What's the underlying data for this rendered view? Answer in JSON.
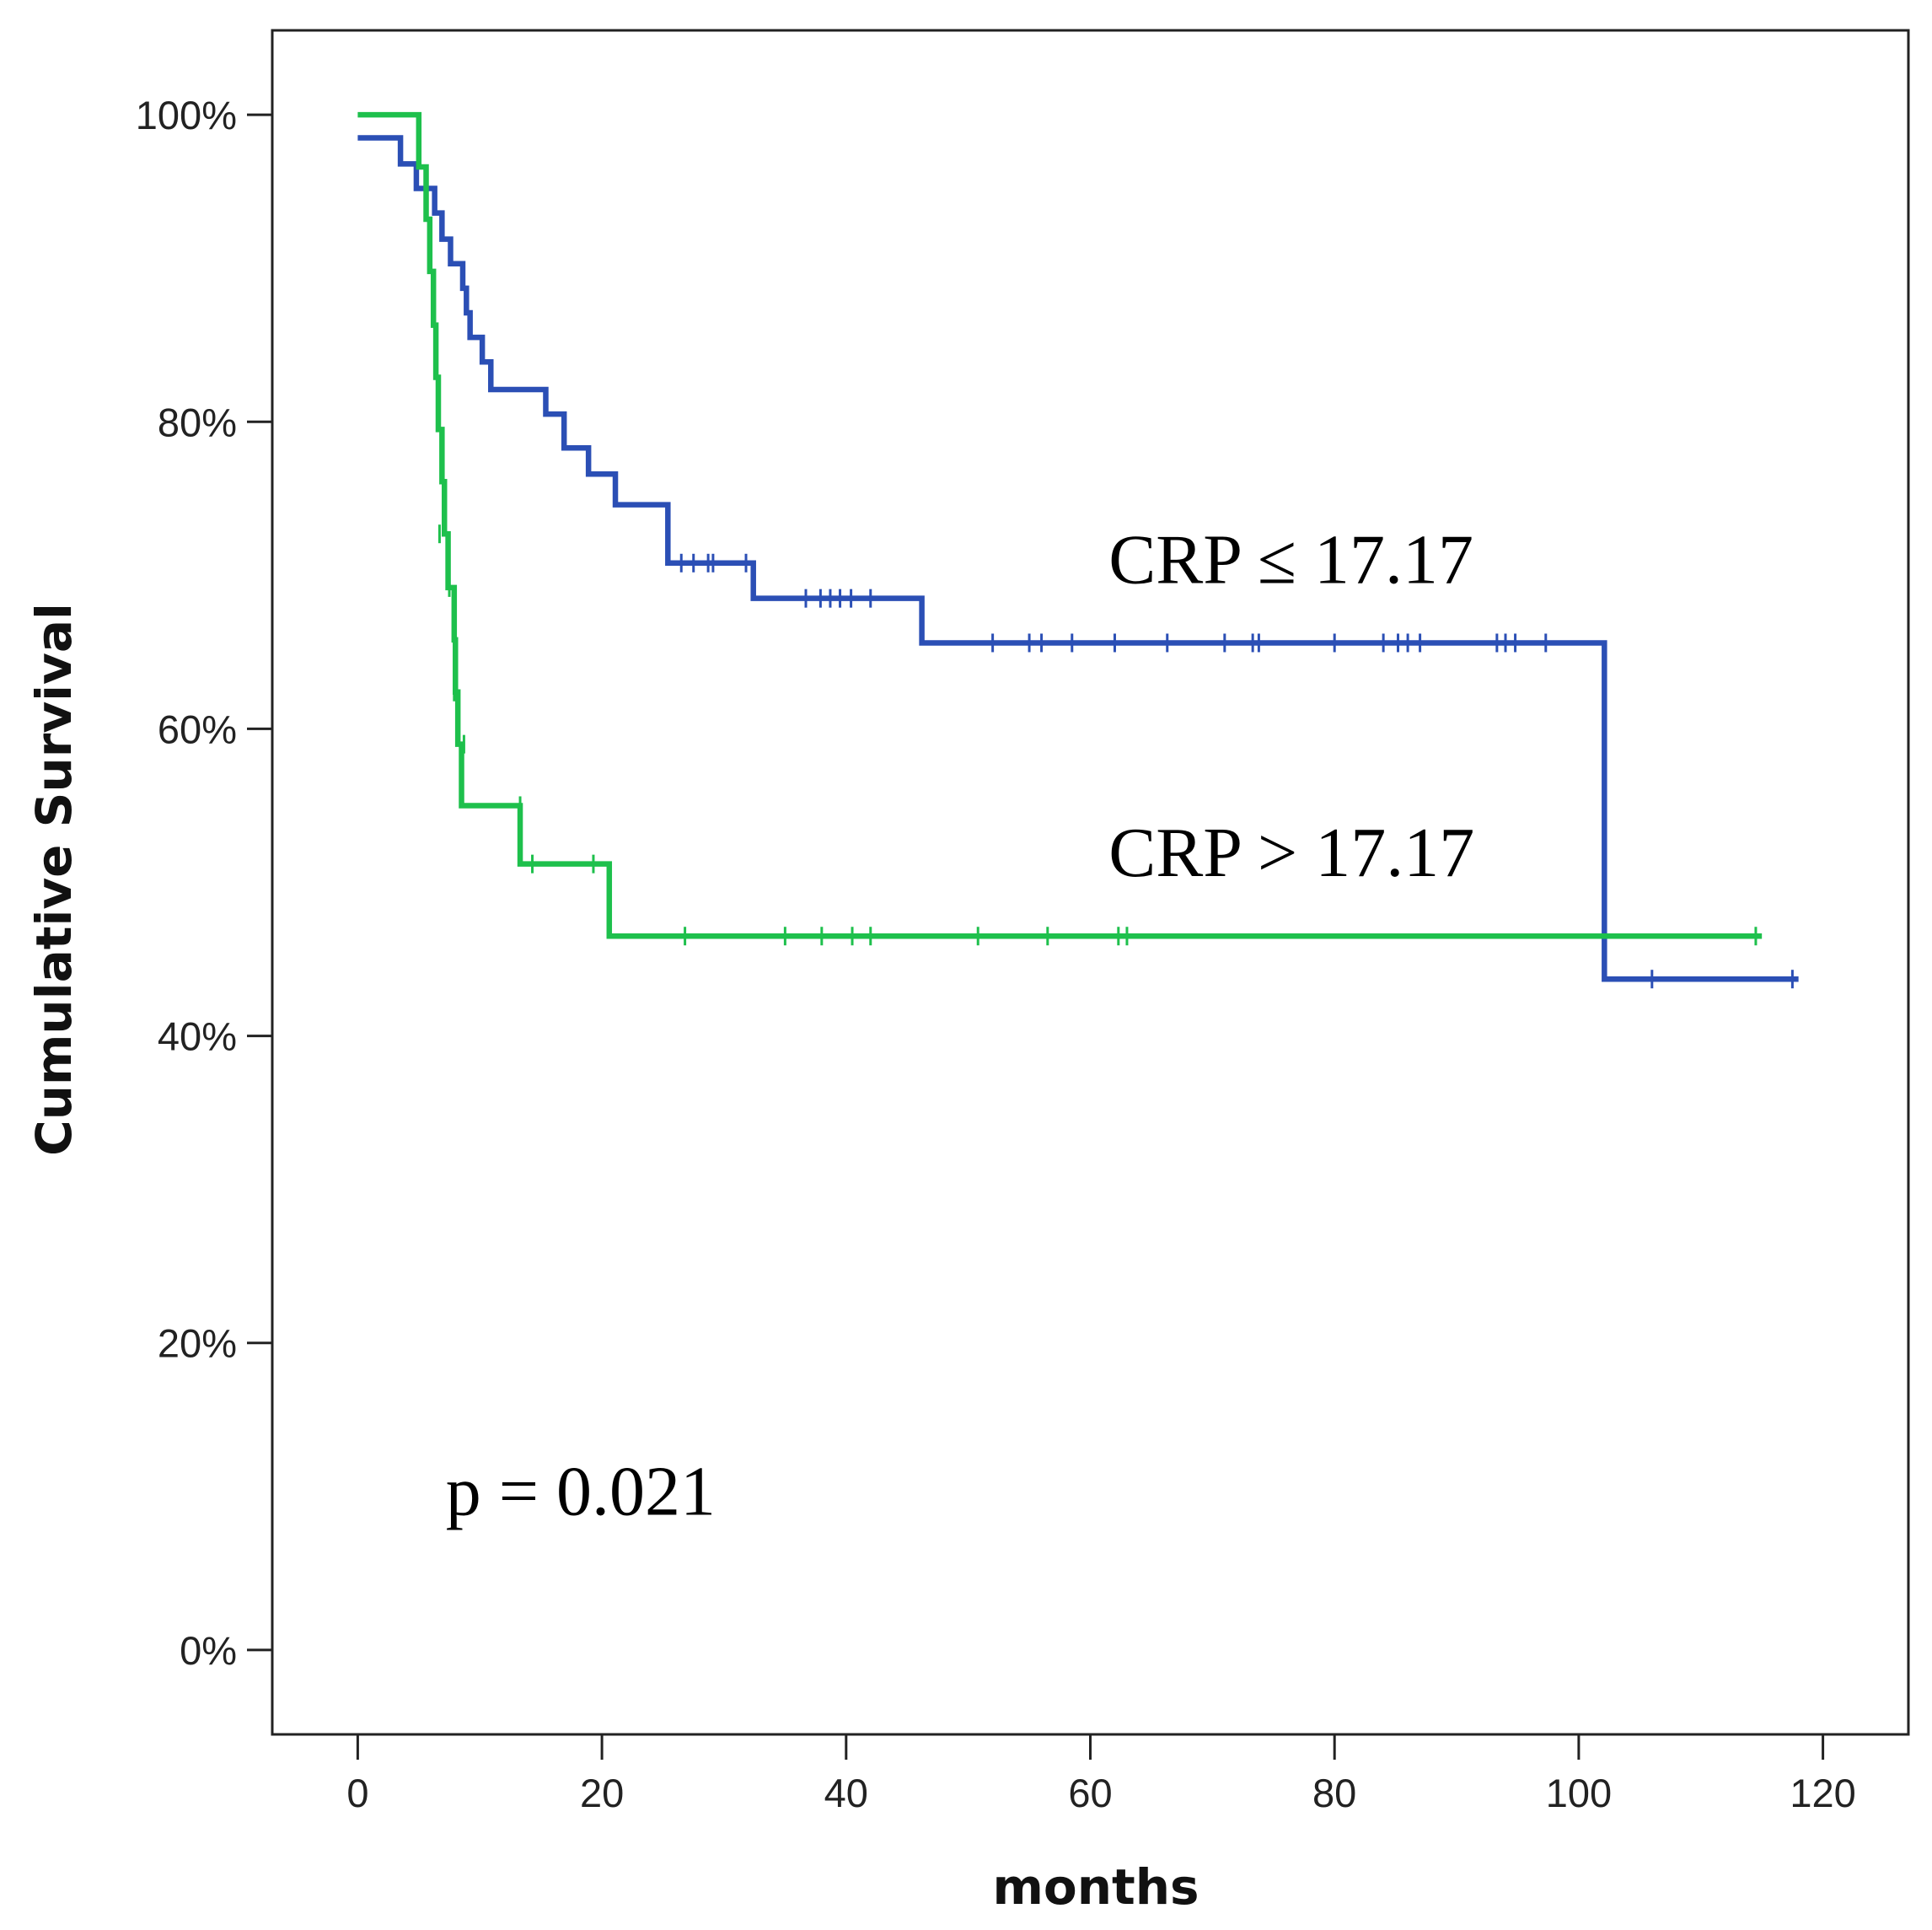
{
  "chart_data": {
    "type": "line",
    "subtype": "kaplan-meier-survival",
    "title": "",
    "xlabel": "months",
    "ylabel": "Cumulative Survival",
    "xlim": [
      -7,
      127
    ],
    "ylim": [
      -5.5,
      105.5
    ],
    "x_ticks": [
      0,
      20,
      40,
      60,
      80,
      100,
      120
    ],
    "y_ticks": [
      0,
      20,
      40,
      60,
      80,
      100
    ],
    "x_tick_labels": [
      "0",
      "20",
      "40",
      "60",
      "80",
      "100",
      "120"
    ],
    "y_tick_labels": [
      "0%",
      "20%",
      "40%",
      "60%",
      "80%",
      "100%"
    ],
    "grid": false,
    "series": [
      {
        "name": "CRP ≤ 17.17",
        "color": "#2b4fb5",
        "steps": [
          [
            0,
            98.5
          ],
          [
            3.5,
            96.8
          ],
          [
            4.8,
            95.2
          ],
          [
            6.3,
            93.6
          ],
          [
            6.9,
            91.9
          ],
          [
            7.6,
            90.3
          ],
          [
            8.6,
            88.7
          ],
          [
            8.9,
            87.1
          ],
          [
            9.2,
            85.5
          ],
          [
            10.2,
            83.9
          ],
          [
            10.9,
            82.1
          ],
          [
            15.4,
            80.5
          ],
          [
            16.9,
            78.3
          ],
          [
            18.9,
            76.6
          ],
          [
            21.1,
            74.6
          ],
          [
            25.4,
            70.8
          ],
          [
            32.4,
            68.5
          ],
          [
            46.2,
            65.6
          ],
          [
            102.1,
            43.7
          ],
          [
            118.0,
            43.7
          ]
        ],
        "censors": [
          [
            26.5,
            70.8
          ],
          [
            27.5,
            70.8
          ],
          [
            28.7,
            70.8
          ],
          [
            29.1,
            70.8
          ],
          [
            31.8,
            70.8
          ],
          [
            36.7,
            68.5
          ],
          [
            37.9,
            68.5
          ],
          [
            38.7,
            68.5
          ],
          [
            39.5,
            68.5
          ],
          [
            40.4,
            68.5
          ],
          [
            42.0,
            68.5
          ],
          [
            52.0,
            65.6
          ],
          [
            55.0,
            65.6
          ],
          [
            56.0,
            65.6
          ],
          [
            58.5,
            65.6
          ],
          [
            62.0,
            65.6
          ],
          [
            66.3,
            65.6
          ],
          [
            71.0,
            65.6
          ],
          [
            73.3,
            65.6
          ],
          [
            73.8,
            65.6
          ],
          [
            80.0,
            65.6
          ],
          [
            84.0,
            65.6
          ],
          [
            85.2,
            65.6
          ],
          [
            86.0,
            65.6
          ],
          [
            87.0,
            65.6
          ],
          [
            93.3,
            65.6
          ],
          [
            94.0,
            65.6
          ],
          [
            94.8,
            65.6
          ],
          [
            97.3,
            65.6
          ],
          [
            106.0,
            43.7
          ],
          [
            117.5,
            43.7
          ]
        ]
      },
      {
        "name": "CRP > 17.17",
        "color": "#1ec04c",
        "steps": [
          [
            0,
            100.0
          ],
          [
            5.0,
            96.6
          ],
          [
            5.6,
            93.2
          ],
          [
            5.9,
            89.8
          ],
          [
            6.2,
            86.3
          ],
          [
            6.4,
            82.9
          ],
          [
            6.6,
            79.5
          ],
          [
            6.9,
            76.1
          ],
          [
            7.1,
            72.7
          ],
          [
            7.4,
            69.2
          ],
          [
            7.9,
            65.8
          ],
          [
            8.0,
            62.4
          ],
          [
            8.2,
            59.0
          ],
          [
            8.5,
            55.0
          ],
          [
            13.3,
            51.2
          ],
          [
            20.6,
            46.5
          ],
          [
            115.0,
            46.5
          ]
        ],
        "censors": [
          [
            6.7,
            72.7
          ],
          [
            7.5,
            69.2
          ],
          [
            7.9,
            62.4
          ],
          [
            8.7,
            59.0
          ],
          [
            13.3,
            55.0
          ],
          [
            14.3,
            51.2
          ],
          [
            19.3,
            51.2
          ],
          [
            26.8,
            46.5
          ],
          [
            35.0,
            46.5
          ],
          [
            38.0,
            46.5
          ],
          [
            40.5,
            46.5
          ],
          [
            42.0,
            46.5
          ],
          [
            50.8,
            46.5
          ],
          [
            56.5,
            46.5
          ],
          [
            62.3,
            46.5
          ],
          [
            63.0,
            46.5
          ],
          [
            114.5,
            46.5
          ]
        ]
      }
    ],
    "annotations": [
      {
        "text": "CRP ≤ 17.17",
        "x": 61.5,
        "y": 69.5
      },
      {
        "text": "CRP > 17.17",
        "x": 61.5,
        "y": 50.4
      },
      {
        "text": "p = 0.021",
        "x": 7.2,
        "y": 8.8
      }
    ]
  }
}
